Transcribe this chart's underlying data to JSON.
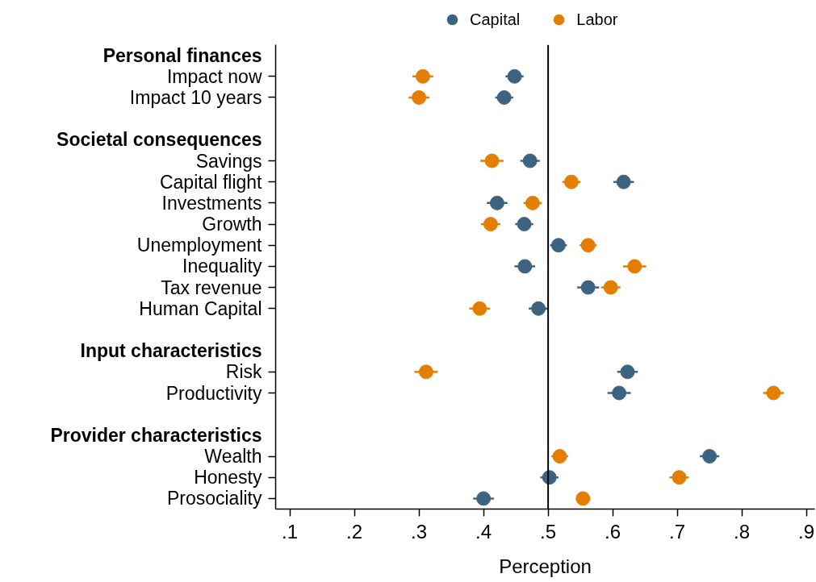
{
  "chart_data": {
    "type": "scatter",
    "orientation": "horizontal",
    "xlabel": "Perception",
    "marker": "circle",
    "legend": "top",
    "categories": [
      "Personal finances",
      "Impact now",
      "Impact 10 years",
      null,
      "Societal consequences",
      "Savings",
      "Capital flight",
      "Investments",
      "Growth",
      "Unemployment",
      "Inequality",
      "Tax revenue",
      "Human Capital",
      null,
      "Input characteristics",
      "Risk",
      "Productivity",
      null,
      "Provider characteristics",
      "Wealth",
      "Honesty",
      "Prosociality"
    ],
    "series": [
      {
        "name": "Capital",
        "color": "#3e6380",
        "values": [
          null,
          0.448,
          0.432,
          null,
          null,
          0.472,
          0.617,
          0.421,
          0.463,
          0.516,
          0.464,
          0.562,
          0.485,
          null,
          null,
          0.623,
          0.61,
          null,
          null,
          0.75,
          0.502,
          0.4
        ],
        "errors": [
          null,
          0.014,
          0.014,
          null,
          null,
          0.015,
          0.016,
          0.016,
          0.014,
          0.013,
          0.016,
          0.017,
          0.015,
          null,
          null,
          0.016,
          0.018,
          null,
          null,
          0.015,
          0.014,
          0.016
        ]
      },
      {
        "name": "Labor",
        "color": "#e37e00",
        "values": [
          null,
          0.306,
          0.3,
          null,
          null,
          0.413,
          0.536,
          0.476,
          0.411,
          0.562,
          0.634,
          0.597,
          0.394,
          null,
          null,
          0.311,
          0.849,
          null,
          null,
          0.518,
          0.703,
          0.554
        ],
        "errors": [
          null,
          0.016,
          0.016,
          null,
          null,
          0.018,
          0.014,
          0.014,
          0.015,
          0.013,
          0.018,
          0.015,
          0.016,
          null,
          null,
          0.018,
          0.016,
          null,
          null,
          0.013,
          0.015,
          0.011
        ]
      }
    ],
    "xlim": [
      0.078,
      0.913
    ],
    "xticks": [
      {
        "value": 0.1,
        "label": ".1"
      },
      {
        "value": 0.2,
        "label": ".2"
      },
      {
        "value": 0.3,
        "label": ".3"
      },
      {
        "value": 0.4,
        "label": ".4"
      },
      {
        "value": 0.5,
        "label": ".5"
      },
      {
        "value": 0.6,
        "label": ".6"
      },
      {
        "value": 0.7,
        "label": ".7"
      },
      {
        "value": 0.8,
        "label": ".8"
      },
      {
        "value": 0.9,
        "label": ".9"
      }
    ],
    "ref_lines": [
      {
        "axis": "x",
        "value": 0.5,
        "color": "#000000"
      }
    ]
  }
}
